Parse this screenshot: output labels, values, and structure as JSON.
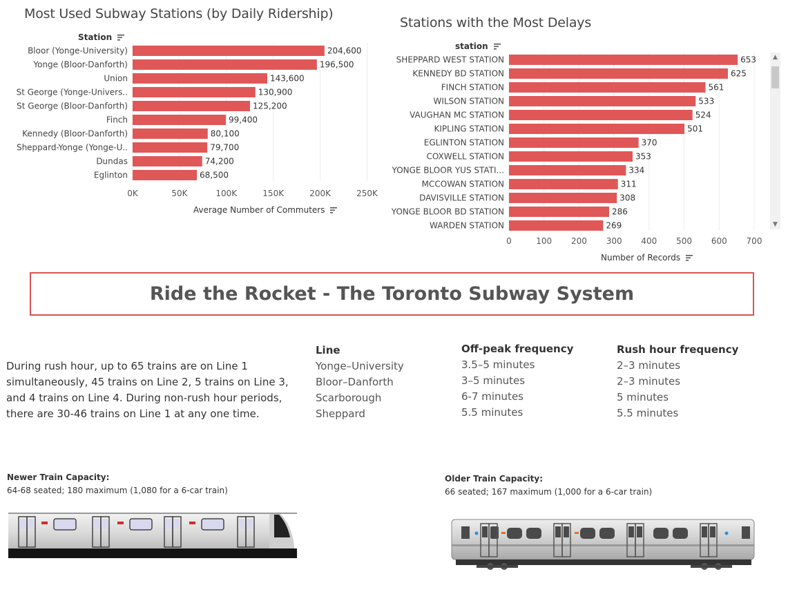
{
  "chart_data": [
    {
      "type": "bar",
      "orientation": "horizontal",
      "title": "Most Used Subway Stations (by Daily Ridership)",
      "row_header": "Station",
      "xlabel": "Average Number of Commuters",
      "categories": [
        "Bloor (Yonge-University)",
        "Yonge (Bloor-Danforth)",
        "Union",
        "St George (Yonge-Univers..",
        "St George (Bloor-Danforth)",
        "Finch",
        "Kennedy (Bloor-Danforth)",
        "Sheppard-Yonge (Yonge-U..",
        "Dundas",
        "Eglinton"
      ],
      "values": [
        204600,
        196500,
        143600,
        130900,
        125200,
        99400,
        80100,
        79700,
        74200,
        68500
      ],
      "value_labels": [
        "204,600",
        "196,500",
        "143,600",
        "130,900",
        "125,200",
        "99,400",
        "80,100",
        "79,700",
        "74,200",
        "68,500"
      ],
      "xlim": [
        0,
        250000
      ],
      "ticks": [
        0,
        50000,
        100000,
        150000,
        200000,
        250000
      ],
      "tick_labels": [
        "0K",
        "50K",
        "100K",
        "150K",
        "200K",
        "250K"
      ],
      "grid": true,
      "color": "#e05758"
    },
    {
      "type": "bar",
      "orientation": "horizontal",
      "title": "Stations with the Most Delays",
      "row_header": "station",
      "xlabel": "Number of Records",
      "categories": [
        "SHEPPARD WEST STATION",
        "KENNEDY BD STATION",
        "FINCH STATION",
        "WILSON STATION",
        "VAUGHAN MC STATION",
        "KIPLING STATION",
        "EGLINTON STATION",
        "COXWELL STATION",
        "YONGE BLOOR YUS STATI...",
        "MCCOWAN STATION",
        "DAVISVILLE STATION",
        "YONGE BLOOR BD STATION",
        "WARDEN STATION"
      ],
      "values": [
        653,
        625,
        561,
        533,
        524,
        501,
        370,
        353,
        334,
        311,
        308,
        286,
        269
      ],
      "value_labels": [
        "653",
        "625",
        "561",
        "533",
        "524",
        "501",
        "370",
        "353",
        "334",
        "311",
        "308",
        "286",
        "269"
      ],
      "xlim": [
        0,
        700
      ],
      "ticks": [
        0,
        100,
        200,
        300,
        400,
        500,
        600,
        700
      ],
      "tick_labels": [
        "0",
        "100",
        "200",
        "300",
        "400",
        "500",
        "600",
        "700"
      ],
      "grid": true,
      "color": "#e05758"
    }
  ],
  "banner": {
    "title": "Ride the Rocket - The Toronto Subway System"
  },
  "summary": "During rush hour, up to 65 trains are on Line 1 simultaneously, 45 trains on Line 2, 5 trains on Line 3, and 4 trains on Line 4. During non-rush hour periods, there are 30-46 trains on Line 1 at any one time.",
  "frequency_table": {
    "headers": [
      "Line",
      "Off-peak frequency",
      "Rush hour frequency"
    ],
    "lines": [
      "Yonge–University",
      "Bloor–Danforth",
      "Scarborough",
      "Sheppard"
    ],
    "off_peak": [
      "3.5–5 minutes",
      "3–5 minutes",
      "6-7 minutes",
      "5.5 minutes"
    ],
    "rush_hour": [
      "2–3 minutes",
      "2–3 minutes",
      "5 minutes",
      "5.5 minutes"
    ]
  },
  "capacity": {
    "newer": {
      "title": "Newer Train Capacity:",
      "text": "64-68 seated; 180 maximum (1,080 for a 6-car train)"
    },
    "older": {
      "title": "Older Train Capacity:",
      "text": "66 seated; 167 maximum (1,000 for a 6-car train)"
    }
  },
  "icons": {
    "sort": "sort-descending-icon",
    "newer_train": "newer-subway-train-icon",
    "older_train": "older-subway-train-icon"
  }
}
